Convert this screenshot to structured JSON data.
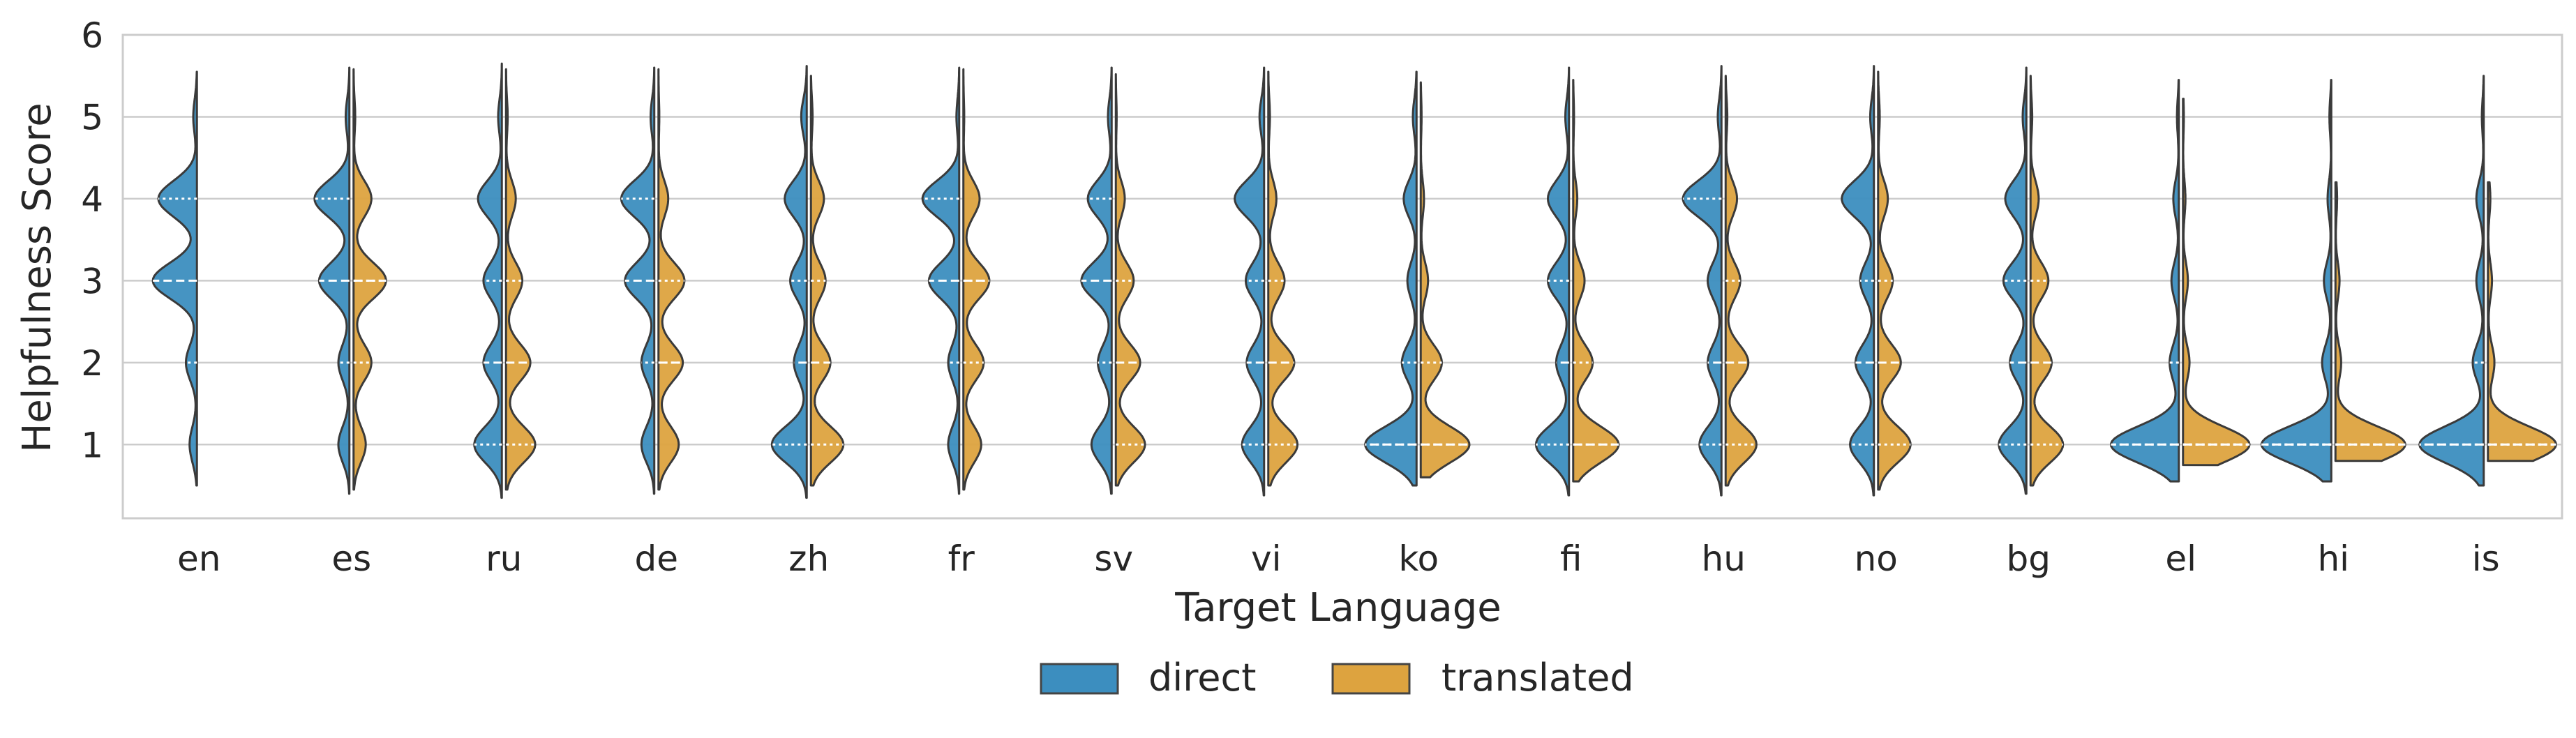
{
  "chart_data": {
    "type": "violin",
    "xlabel": "Target Language",
    "ylabel": "Helpfulness Score",
    "ylim": [
      0.1,
      6
    ],
    "yticks": [
      1,
      2,
      3,
      4,
      5,
      6
    ],
    "grid": true,
    "legend_position": "bottom-center",
    "categories": [
      "en",
      "es",
      "ru",
      "de",
      "zh",
      "fr",
      "sv",
      "vi",
      "ko",
      "fi",
      "hu",
      "no",
      "bg",
      "el",
      "hi",
      "is"
    ],
    "series": [
      {
        "name": "direct",
        "color": "#3c8ebf",
        "side": "left",
        "ranges": [
          [
            0.5,
            5.55
          ],
          [
            0.4,
            5.6
          ],
          [
            0.35,
            5.65
          ],
          [
            0.4,
            5.6
          ],
          [
            0.35,
            5.62
          ],
          [
            0.4,
            5.6
          ],
          [
            0.4,
            5.6
          ],
          [
            0.38,
            5.6
          ],
          [
            0.5,
            5.55
          ],
          [
            0.38,
            5.6
          ],
          [
            0.38,
            5.62
          ],
          [
            0.38,
            5.62
          ],
          [
            0.4,
            5.6
          ],
          [
            0.55,
            5.45
          ],
          [
            0.55,
            5.45
          ],
          [
            0.5,
            5.5
          ]
        ],
        "distribution": [
          [
            0.08,
            0.12,
            0.48,
            0.42,
            0.04
          ],
          [
            0.12,
            0.12,
            0.33,
            0.38,
            0.04
          ],
          [
            0.3,
            0.2,
            0.2,
            0.26,
            0.04
          ],
          [
            0.14,
            0.14,
            0.32,
            0.36,
            0.04
          ],
          [
            0.38,
            0.14,
            0.18,
            0.24,
            0.06
          ],
          [
            0.12,
            0.12,
            0.33,
            0.4,
            0.03
          ],
          [
            0.22,
            0.15,
            0.33,
            0.26,
            0.04
          ],
          [
            0.24,
            0.19,
            0.2,
            0.32,
            0.05
          ],
          [
            0.56,
            0.16,
            0.1,
            0.14,
            0.04
          ],
          [
            0.36,
            0.14,
            0.23,
            0.23,
            0.04
          ],
          [
            0.24,
            0.15,
            0.15,
            0.42,
            0.04
          ],
          [
            0.26,
            0.2,
            0.15,
            0.35,
            0.04
          ],
          [
            0.3,
            0.18,
            0.25,
            0.23,
            0.04
          ],
          [
            0.74,
            0.1,
            0.08,
            0.06,
            0.02
          ],
          [
            0.76,
            0.1,
            0.08,
            0.04,
            0.02
          ],
          [
            0.7,
            0.12,
            0.08,
            0.08,
            0.02
          ]
        ],
        "quartiles": [
          [
            2,
            3,
            4
          ],
          [
            2,
            3,
            4
          ],
          [
            1,
            2,
            3
          ],
          [
            2,
            3,
            4
          ],
          [
            1,
            2,
            3
          ],
          [
            2,
            3,
            4
          ],
          [
            2,
            3,
            4
          ],
          [
            1,
            2,
            3
          ],
          [
            1,
            1,
            2
          ],
          [
            1,
            2,
            3
          ],
          [
            1,
            2,
            4
          ],
          [
            1,
            2,
            3
          ],
          [
            1,
            2,
            3
          ],
          [
            1,
            1,
            2
          ],
          [
            1,
            1,
            1
          ],
          [
            1,
            1,
            2
          ]
        ]
      },
      {
        "name": "translated",
        "color": "#dda33f",
        "side": "right",
        "ranges": [
          null,
          [
            0.45,
            5.58
          ],
          [
            0.45,
            5.58
          ],
          [
            0.45,
            5.58
          ],
          [
            0.5,
            5.5
          ],
          [
            0.45,
            5.58
          ],
          [
            0.5,
            5.52
          ],
          [
            0.5,
            5.55
          ],
          [
            0.6,
            5.42
          ],
          [
            0.55,
            5.45
          ],
          [
            0.5,
            5.5
          ],
          [
            0.45,
            5.55
          ],
          [
            0.5,
            5.5
          ],
          [
            0.75,
            5.22
          ],
          [
            0.8,
            4.2
          ],
          [
            0.8,
            4.2
          ]
        ],
        "distribution": [
          null,
          [
            0.15,
            0.22,
            0.4,
            0.22,
            0.02
          ],
          [
            0.36,
            0.3,
            0.2,
            0.12,
            0.02
          ],
          [
            0.25,
            0.3,
            0.32,
            0.12,
            0.01
          ],
          [
            0.4,
            0.24,
            0.18,
            0.16,
            0.02
          ],
          [
            0.22,
            0.25,
            0.32,
            0.2,
            0.01
          ],
          [
            0.36,
            0.3,
            0.22,
            0.11,
            0.01
          ],
          [
            0.36,
            0.32,
            0.2,
            0.1,
            0.02
          ],
          [
            0.6,
            0.26,
            0.09,
            0.04,
            0.01
          ],
          [
            0.56,
            0.24,
            0.14,
            0.05,
            0.01
          ],
          [
            0.38,
            0.28,
            0.18,
            0.14,
            0.02
          ],
          [
            0.4,
            0.28,
            0.18,
            0.12,
            0.02
          ],
          [
            0.4,
            0.26,
            0.22,
            0.1,
            0.02
          ],
          [
            0.82,
            0.08,
            0.06,
            0.03,
            0.01
          ],
          [
            0.86,
            0.07,
            0.05,
            0.02,
            0.0
          ],
          [
            0.84,
            0.08,
            0.05,
            0.03,
            0.0
          ]
        ],
        "quartiles": [
          null,
          [
            2,
            3,
            3
          ],
          [
            1,
            2,
            3
          ],
          [
            2,
            2,
            3
          ],
          [
            1,
            2,
            3
          ],
          [
            2,
            3,
            3
          ],
          [
            1,
            2,
            3
          ],
          [
            1,
            2,
            3
          ],
          [
            1,
            1,
            2
          ],
          [
            1,
            1,
            2
          ],
          [
            1,
            2,
            3
          ],
          [
            1,
            2,
            3
          ],
          [
            1,
            2,
            3
          ],
          [
            1,
            1,
            1
          ],
          [
            1,
            1,
            1
          ],
          [
            1,
            1,
            1
          ]
        ]
      }
    ]
  }
}
